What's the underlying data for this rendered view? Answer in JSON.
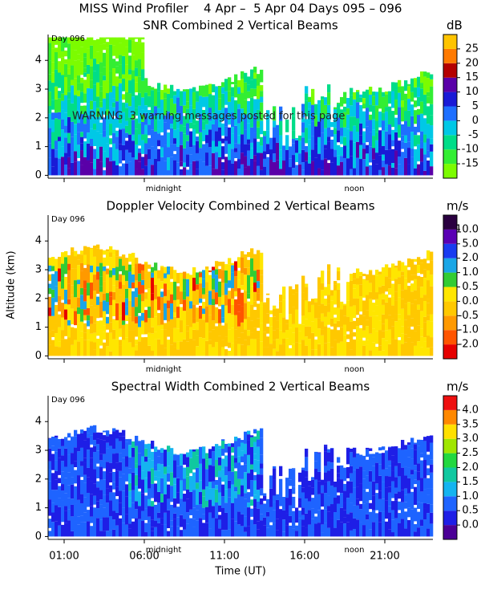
{
  "title": "MISS Wind Profiler    4 Apr –  5 Apr 04 Days 095 – 096",
  "y_axis_label": "Altitude (km)",
  "x_axis_label": "Time (UT)",
  "xlim": [
    0,
    24
  ],
  "xticks": [
    {
      "value": 1,
      "label": "01:00"
    },
    {
      "value": 6,
      "label": "06:00"
    },
    {
      "value": 11,
      "label": "11:00"
    },
    {
      "value": 16,
      "label": "16:00"
    },
    {
      "value": 21,
      "label": "21:00"
    }
  ],
  "warning": "WARNING  3 warning messages posted for this page",
  "chart_data": [
    {
      "type": "heatmap",
      "title": "SNR Combined 2 Vertical Beams",
      "unit": "dB",
      "day_label": "Day 096",
      "markers": [
        {
          "value": 7.2,
          "label": "midnight"
        },
        {
          "value": 19.1,
          "label": "noon"
        }
      ],
      "ylim": [
        -0.1,
        4.9
      ],
      "yticks": [
        0,
        1,
        2,
        3,
        4
      ],
      "colorbar_ticks": [
        -15,
        -10,
        -5,
        0,
        5,
        10,
        15,
        20,
        25
      ],
      "colors": [
        "#7cfc00",
        "#33ee33",
        "#00dd88",
        "#00c8e6",
        "#1e6fff",
        "#1a1ad6",
        "#5a00a8",
        "#b40000",
        "#ff7a00",
        "#ffc400"
      ]
    },
    {
      "type": "heatmap",
      "title": "Doppler Velocity Combined 2 Vertical Beams",
      "unit": "m/s",
      "day_label": "Day 096",
      "markers": [
        {
          "value": 7.2,
          "label": "midnight"
        },
        {
          "value": 19.1,
          "label": "noon"
        }
      ],
      "ylim": [
        -0.1,
        4.9
      ],
      "yticks": [
        0,
        1,
        2,
        3,
        4
      ],
      "colorbar_ticks": [
        {
          "value": -2,
          "label": "-2.0"
        },
        {
          "value": -1,
          "label": "-1.0"
        },
        {
          "value": -0.5,
          "label": "-0.5"
        },
        {
          "value": 0,
          "label": "0.0"
        },
        {
          "value": 0.5,
          "label": "0.5"
        },
        {
          "value": 1,
          "label": "1.0"
        },
        {
          "value": 2,
          "label": "2.0"
        },
        {
          "value": 5,
          "label": "5.0"
        },
        {
          "value": 10,
          "label": "10.0"
        }
      ],
      "colors": [
        "#e60000",
        "#ff5500",
        "#ff9900",
        "#ffc800",
        "#ffe600",
        "#33cc33",
        "#1aa6e6",
        "#1a3cf0",
        "#5a00b4",
        "#2a0040"
      ]
    },
    {
      "type": "heatmap",
      "title": "Spectral Width Combined 2 Vertical Beams",
      "unit": "m/s",
      "day_label": "Day 096",
      "markers": [
        {
          "value": 7.2,
          "label": "midnight"
        },
        {
          "value": 19.1,
          "label": "noon"
        }
      ],
      "ylim": [
        -0.1,
        4.9
      ],
      "yticks": [
        0,
        1,
        2,
        3,
        4
      ],
      "colorbar_ticks": [
        {
          "value": 0,
          "label": "0.0"
        },
        {
          "value": 0.5,
          "label": "0.5"
        },
        {
          "value": 1,
          "label": "1.0"
        },
        {
          "value": 1.5,
          "label": "1.5"
        },
        {
          "value": 2,
          "label": "2.0"
        },
        {
          "value": 2.5,
          "label": "2.5"
        },
        {
          "value": 3,
          "label": "3.0"
        },
        {
          "value": 3.5,
          "label": "3.5"
        },
        {
          "value": 4,
          "label": "4.0"
        }
      ],
      "colors": [
        "#4b0096",
        "#1e1ee6",
        "#1e64ff",
        "#14b4f0",
        "#10c8a0",
        "#22d840",
        "#a0e600",
        "#ffe000",
        "#ff8800",
        "#ee1010"
      ]
    }
  ]
}
